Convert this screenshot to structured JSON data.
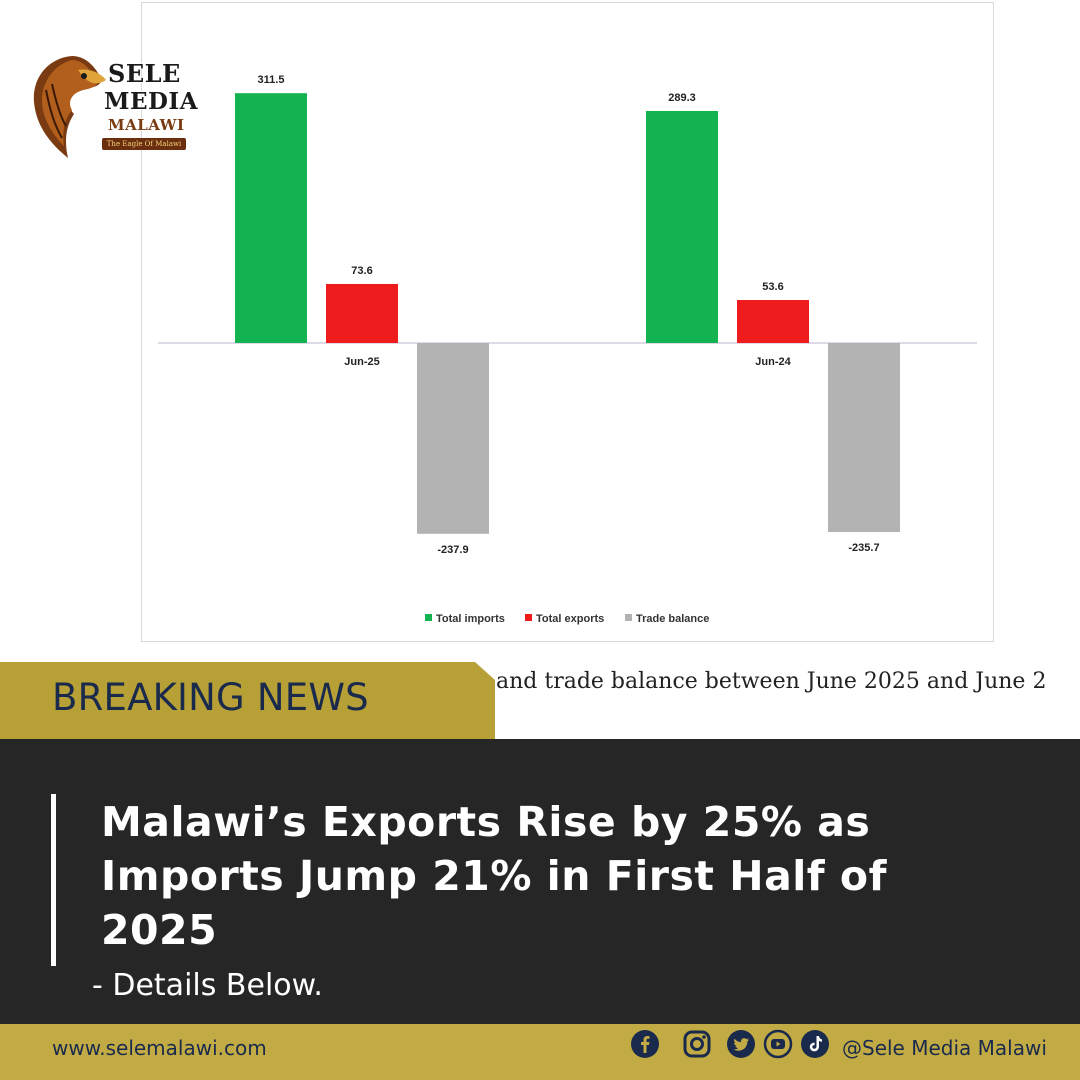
{
  "brand": {
    "logo_line1": "SELE",
    "logo_line2": "MEDIA",
    "logo_line3": "MALAWI",
    "logo_tagline": "The Eagle Of  Malawi"
  },
  "chart_data": {
    "type": "bar",
    "categories": [
      "Jun-25",
      "Jun-24"
    ],
    "series": [
      {
        "name": "Total imports",
        "values": [
          311.5,
          289.3
        ],
        "color": "#14b351"
      },
      {
        "name": "Total exports",
        "values": [
          73.6,
          53.6
        ],
        "color": "#ee1c1c"
      },
      {
        "name": "Trade balance",
        "values": [
          -237.9,
          -235.7
        ],
        "color": "#b3b3b3"
      }
    ],
    "ylim": [
      -270,
      350
    ],
    "grid": false,
    "legend": "bottom-center"
  },
  "caption_fragment": "and trade balance between June 2025 and June 2",
  "breaking_label": "BREAKING NEWS",
  "headline": {
    "line1": "Malawi’s Exports Rise by 25% as",
    "line2": "Imports Jump 21% in First Half of",
    "line3": "2025"
  },
  "subline": "- Details Below.",
  "footer": {
    "url": "www.selemalawi.com",
    "handle": "@Sele Media Malawi",
    "icons": [
      "facebook-icon",
      "instagram-icon",
      "twitter-icon",
      "youtube-icon",
      "tiktok-icon"
    ]
  },
  "colors": {
    "gold": "#c2ab44",
    "dark": "#262626",
    "navy": "#1a2a4c"
  }
}
